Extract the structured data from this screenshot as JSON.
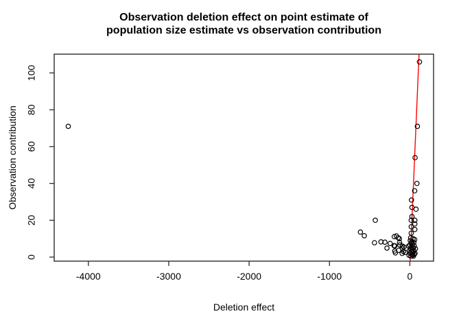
{
  "figure": {
    "title_line1": "Observation deletion effect on point estimate of",
    "title_line2": "population size estimate vs observation contribution"
  },
  "chart_data": {
    "type": "scatter",
    "title": "Observation deletion effect on point estimate of population size estimate vs observation contribution",
    "xlabel": "Deletion effect",
    "ylabel": "Observation contribution",
    "xlim": [
      -4425,
      295
    ],
    "ylim": [
      -2.2,
      110.2
    ],
    "x_ticks": [
      -4000,
      -3000,
      -2000,
      -1000,
      0
    ],
    "y_ticks": [
      0,
      20,
      40,
      60,
      80,
      100
    ],
    "grid": false,
    "legend": null,
    "point_style": {
      "marker": "open-circle",
      "color": "#000000"
    },
    "colors": {
      "fit_line": "#ff0000",
      "marker": "#000000",
      "axis": "#2b2b2b",
      "background": "#ffffff"
    },
    "fit_line": {
      "x1": 4,
      "y1": -2.2,
      "x2": 114.5,
      "y2": 110.2
    },
    "points": [
      [
        -4250,
        71
      ],
      [
        120,
        106
      ],
      [
        94,
        71
      ],
      [
        65,
        54
      ],
      [
        88,
        40
      ],
      [
        60,
        36
      ],
      [
        20,
        31
      ],
      [
        26,
        27
      ],
      [
        77,
        26
      ],
      [
        26,
        22
      ],
      [
        17,
        20
      ],
      [
        62,
        20
      ],
      [
        62,
        18
      ],
      [
        17,
        16.5
      ],
      [
        62,
        15
      ],
      [
        17,
        13
      ],
      [
        -96,
        2
      ],
      [
        -74,
        5.5
      ],
      [
        -615,
        13.6
      ],
      [
        -567,
        11.6
      ],
      [
        -430,
        20
      ],
      [
        -440,
        7.8
      ],
      [
        -359,
        8.3
      ],
      [
        -310,
        8.1
      ],
      [
        -285,
        4.9
      ],
      [
        -245,
        7.4
      ],
      [
        -194,
        11.1
      ],
      [
        -168,
        11.5
      ],
      [
        -145,
        10.5
      ],
      [
        -130,
        10
      ],
      [
        -128,
        8.0
      ],
      [
        -196,
        6.2
      ],
      [
        -187,
        6.1
      ],
      [
        -125,
        6.6
      ],
      [
        -188,
        3.3
      ],
      [
        -180,
        2.3
      ],
      [
        -139,
        3.7
      ],
      [
        -94,
        6
      ],
      [
        -94,
        4.9
      ],
      [
        -79,
        3
      ],
      [
        -57,
        2.5
      ],
      [
        10,
        10.5
      ],
      [
        40,
        10
      ],
      [
        60,
        9.5
      ],
      [
        5,
        9
      ],
      [
        25,
        8.5
      ],
      [
        50,
        8
      ],
      [
        15,
        7.5
      ],
      [
        35,
        7
      ],
      [
        0,
        6.5
      ],
      [
        55,
        6
      ],
      [
        20,
        5.5
      ],
      [
        45,
        5
      ],
      [
        8,
        4.5
      ],
      [
        30,
        4
      ],
      [
        -5,
        3.5
      ],
      [
        50,
        3.5
      ],
      [
        15,
        3
      ],
      [
        38,
        2.5
      ],
      [
        5,
        2
      ],
      [
        25,
        1.5
      ],
      [
        55,
        1.5
      ],
      [
        -10,
        1
      ],
      [
        35,
        1
      ],
      [
        12,
        0.5
      ],
      [
        45,
        0.5
      ],
      [
        65,
        2
      ],
      [
        70,
        4.5
      ],
      [
        -15,
        6
      ]
    ]
  }
}
